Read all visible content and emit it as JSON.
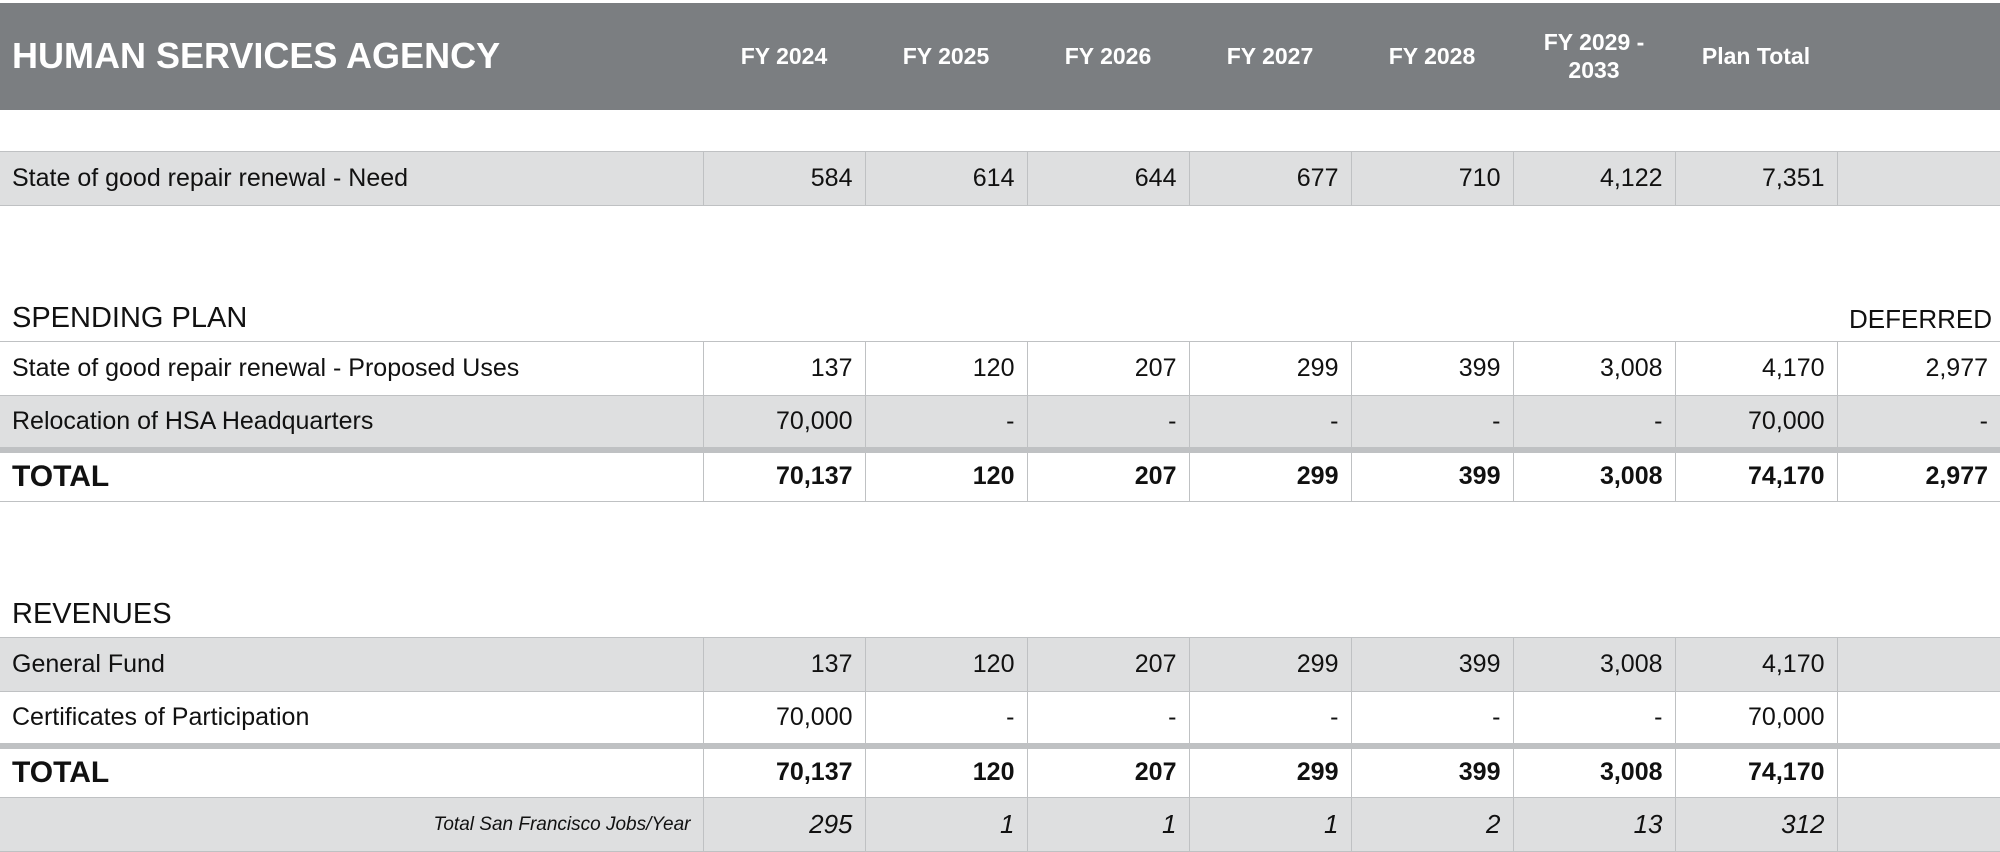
{
  "header": {
    "title": "HUMAN SERVICES AGENCY",
    "columns": [
      "FY 2024",
      "FY 2025",
      "FY 2026",
      "FY 2027",
      "FY 2028",
      "FY 2029 -\n2033",
      "Plan Total"
    ]
  },
  "need": {
    "label": "State of good repair renewal - Need",
    "values": [
      "584",
      "614",
      "644",
      "677",
      "710",
      "4,122",
      "7,351",
      ""
    ]
  },
  "spending_plan": {
    "title": "SPENDING PLAN",
    "deferred_label": "DEFERRED",
    "rows": [
      {
        "label": "State of good repair renewal - Proposed Uses",
        "values": [
          "137",
          "120",
          "207",
          "299",
          "399",
          "3,008",
          "4,170",
          "2,977"
        ]
      },
      {
        "label": "Relocation of HSA Headquarters",
        "values": [
          "70,000",
          "-",
          "-",
          "-",
          "-",
          "-",
          "70,000",
          "-"
        ]
      }
    ],
    "total": {
      "label": "TOTAL",
      "values": [
        "70,137",
        "120",
        "207",
        "299",
        "399",
        "3,008",
        "74,170",
        "2,977"
      ]
    }
  },
  "revenues": {
    "title": "REVENUES",
    "rows": [
      {
        "label": "General Fund",
        "values": [
          "137",
          "120",
          "207",
          "299",
          "399",
          "3,008",
          "4,170",
          ""
        ]
      },
      {
        "label": "Certificates of Participation",
        "values": [
          "70,000",
          "-",
          "-",
          "-",
          "-",
          "-",
          "70,000",
          ""
        ]
      }
    ],
    "total": {
      "label": "TOTAL",
      "values": [
        "70,137",
        "120",
        "207",
        "299",
        "399",
        "3,008",
        "74,170",
        ""
      ]
    },
    "jobs": {
      "label": "Total San Francisco Jobs/Year",
      "values": [
        "295",
        "1",
        "1",
        "1",
        "2",
        "13",
        "312",
        ""
      ]
    }
  }
}
